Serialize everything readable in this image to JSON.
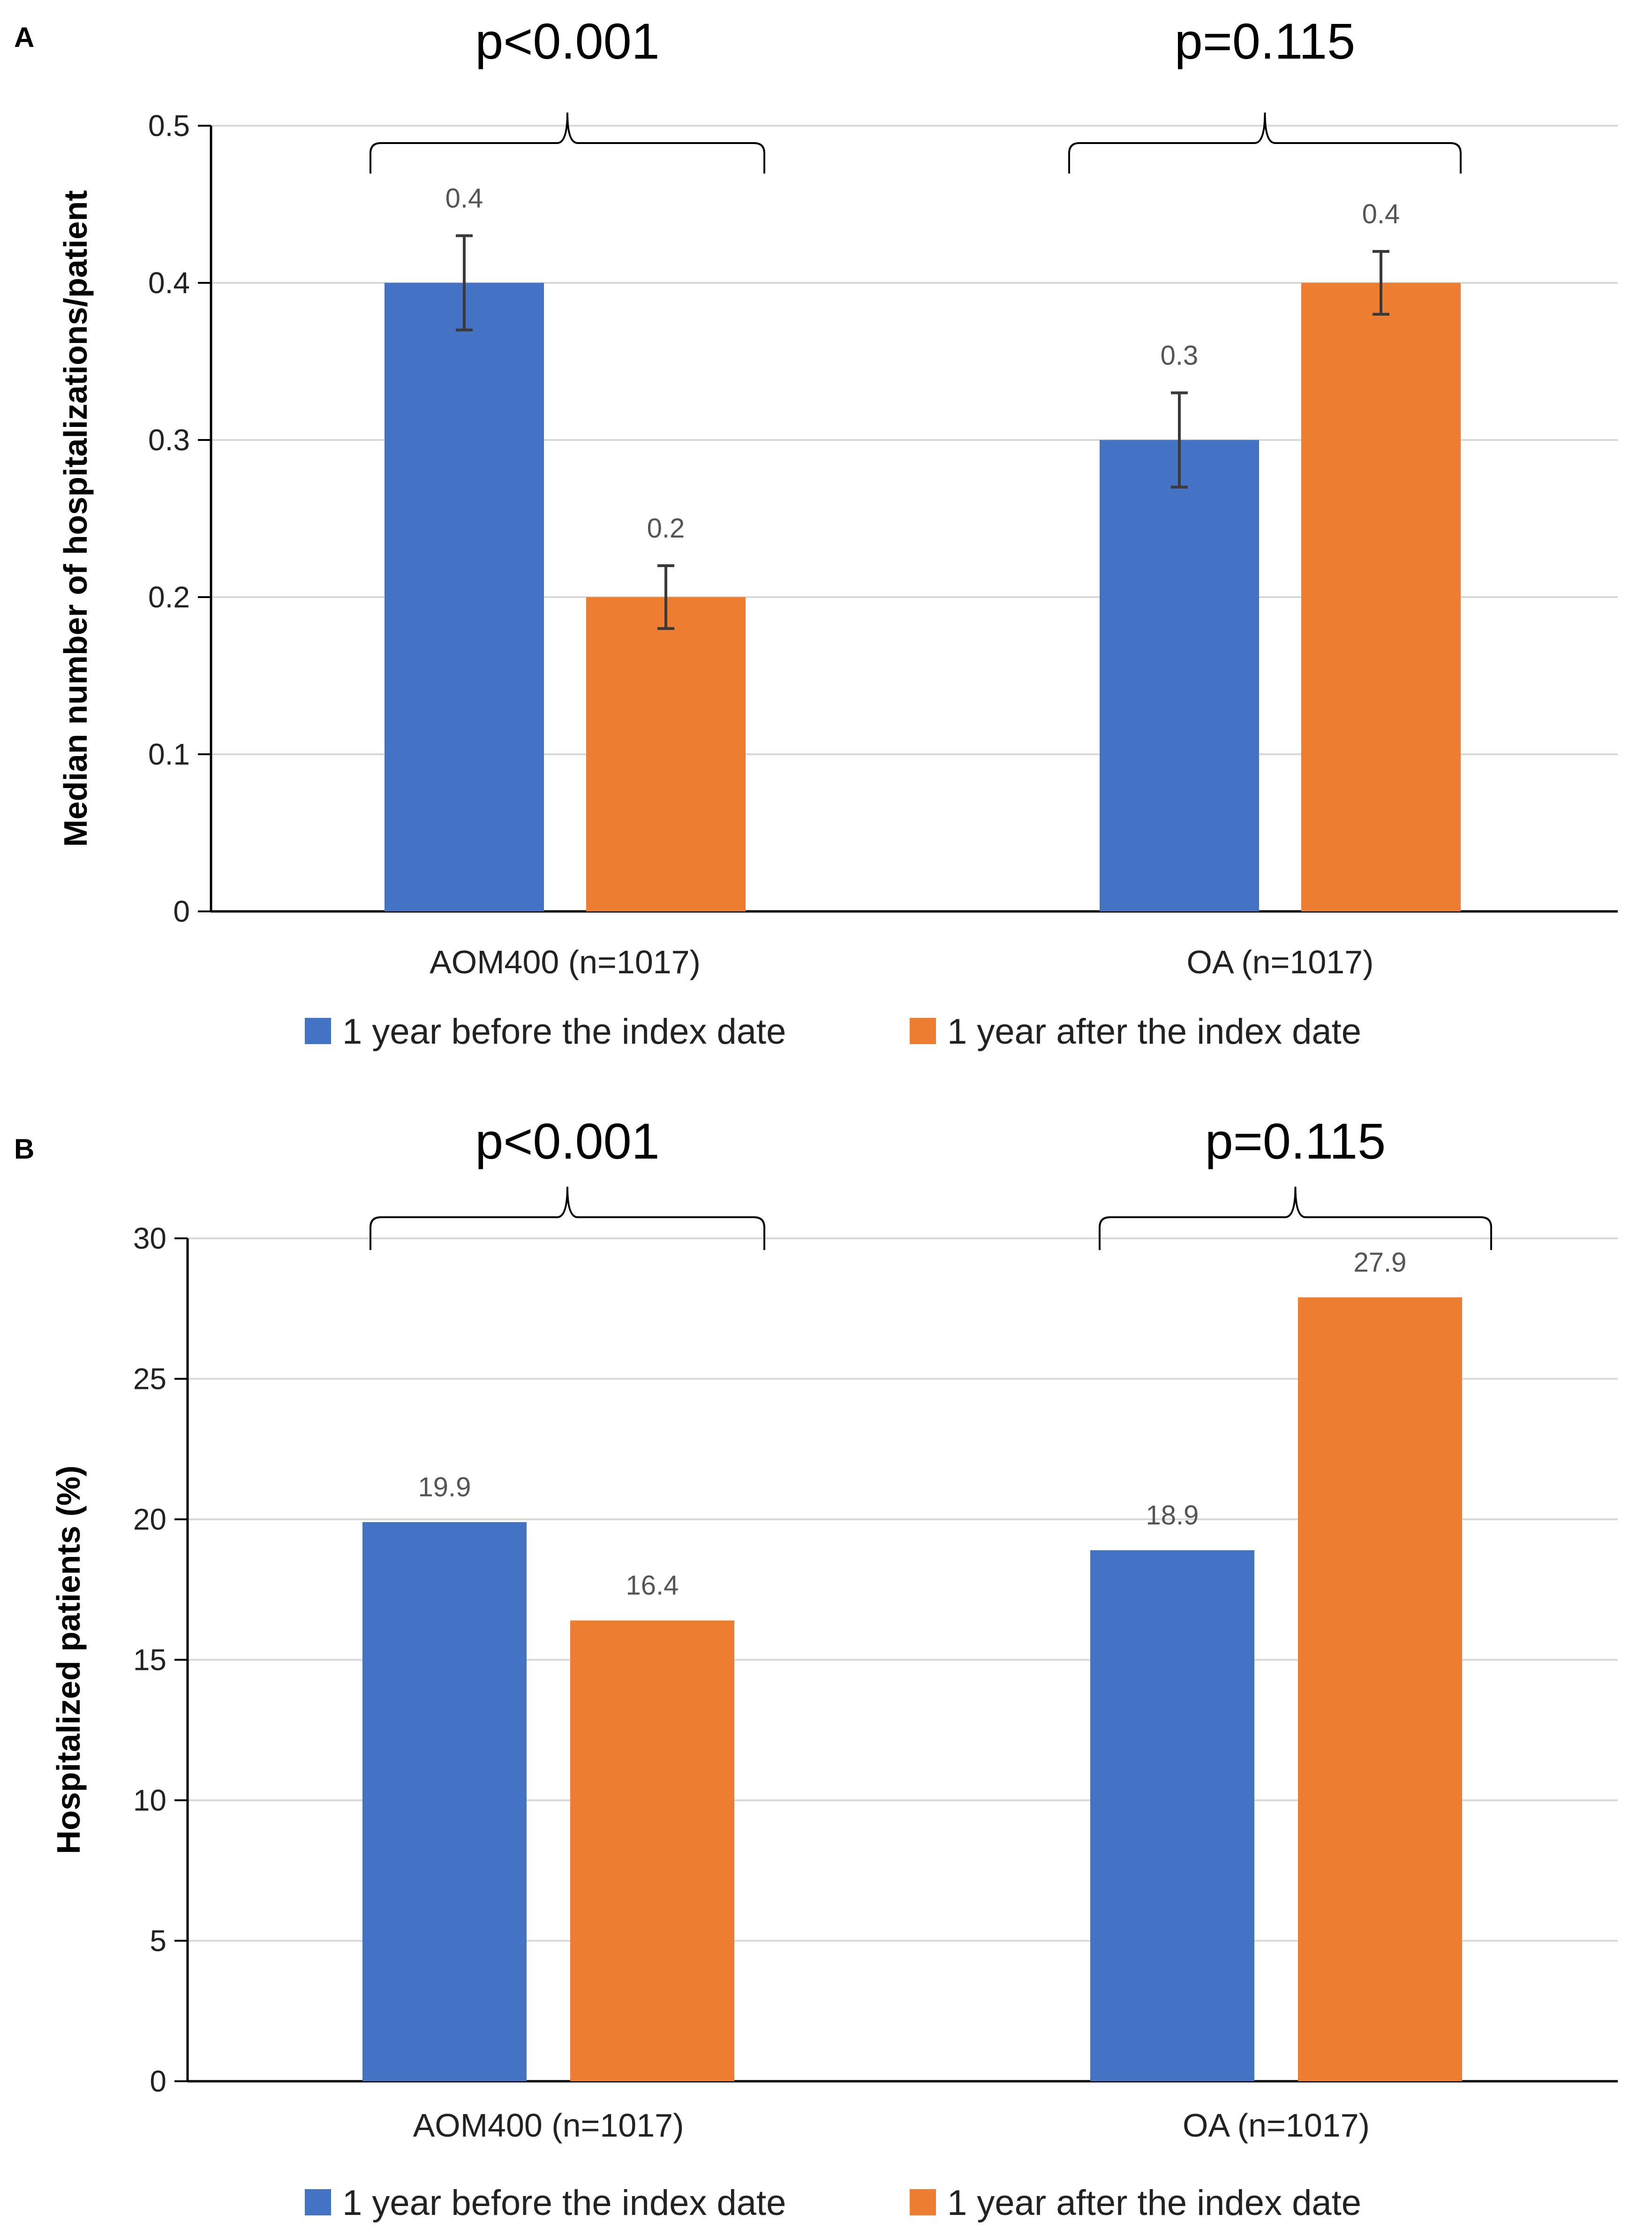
{
  "chart_data": [
    {
      "panel": "A",
      "type": "bar",
      "title": "",
      "xlabel": "",
      "ylabel": "Median number of hospitalizations/patient",
      "ylim": [
        0,
        0.5
      ],
      "ytick_labels": [
        "0",
        "0.1",
        "0.2",
        "0.3",
        "0.4",
        "0.5"
      ],
      "grid": true,
      "categories": [
        "AOM400 (n=1017)",
        "OA (n=1017)"
      ],
      "series": [
        {
          "name": "1 year before the index date",
          "color": "#4472c4",
          "values": [
            0.4,
            0.3
          ],
          "labels": [
            "0.4",
            "0.3"
          ],
          "errors": [
            0.03,
            0.03
          ]
        },
        {
          "name": "1 year after the index date",
          "color": "#ed7d31",
          "values": [
            0.2,
            0.4
          ],
          "labels": [
            "0.2",
            "0.4"
          ],
          "errors": [
            0.02,
            0.02
          ]
        }
      ],
      "p_values": [
        "p<0.001",
        "p=0.115"
      ],
      "legend": "bottom"
    },
    {
      "panel": "B",
      "type": "bar",
      "title": "",
      "xlabel": "",
      "ylabel": "Hospitalized patients (%)",
      "ylim": [
        0,
        30
      ],
      "ytick_labels": [
        "0",
        "5",
        "10",
        "15",
        "20",
        "25",
        "30"
      ],
      "grid": true,
      "categories": [
        "AOM400 (n=1017)",
        "OA (n=1017)"
      ],
      "series": [
        {
          "name": "1 year before the index date",
          "color": "#4472c4",
          "values": [
            19.9,
            18.9
          ],
          "labels": [
            "19.9",
            "18.9"
          ]
        },
        {
          "name": "1 year after the index date",
          "color": "#ed7d31",
          "values": [
            16.4,
            27.9
          ],
          "labels": [
            "16.4",
            "27.9"
          ]
        }
      ],
      "p_values": [
        "p<0.001",
        "p=0.115"
      ],
      "legend": "bottom"
    }
  ]
}
